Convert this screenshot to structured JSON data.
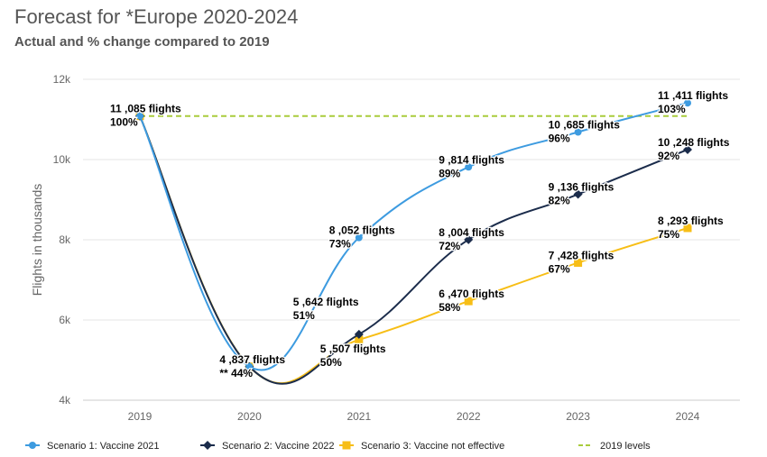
{
  "title": "Forecast for *Europe 2020-2024",
  "subtitle": "Actual and % change compared to 2019",
  "chart_data": {
    "type": "line",
    "title": "Forecast for *Europe 2020-2024",
    "subtitle": "Actual and % change compared to 2019",
    "ylabel": "Flights in thousands",
    "xlabel": "",
    "x": [
      "2019",
      "2020",
      "2021",
      "2022",
      "2023",
      "2024"
    ],
    "ylim": [
      4000,
      12000
    ],
    "yticks": [
      {
        "v": 4000,
        "label": "4k"
      },
      {
        "v": 6000,
        "label": "6k"
      },
      {
        "v": 8000,
        "label": "8k"
      },
      {
        "v": 10000,
        "label": "10k"
      },
      {
        "v": 12000,
        "label": "12k"
      }
    ],
    "grid": true,
    "legend_placement": "bottom",
    "series": [
      {
        "name": "Scenario 1: Vaccine 2021",
        "color": "#3d9be0",
        "marker": "circle",
        "values": [
          11085,
          4837,
          8052,
          9814,
          10685,
          11411
        ],
        "labels": [
          "11 ,085 flights",
          "4 ,837 flights",
          "8 ,052 flights",
          "9 ,814 flights",
          "10 ,685 flights",
          "11 ,411 flights"
        ],
        "pct": [
          "100%",
          "** 44%",
          "73%",
          "89%",
          "96%",
          "103%"
        ]
      },
      {
        "name": "Scenario 2: Vaccine 2022",
        "color": "#1b2c4b",
        "marker": "diamond",
        "values": [
          11085,
          4837,
          5642,
          8004,
          9136,
          10248
        ],
        "labels": [
          null,
          null,
          "5 ,642 flights",
          "8 ,004 flights",
          "9 ,136 flights",
          "10 ,248 flights"
        ],
        "pct": [
          null,
          null,
          "51%",
          "72%",
          "82%",
          "92%"
        ]
      },
      {
        "name": "Scenario 3: Vaccine not effective",
        "color": "#f7be16",
        "marker": "square",
        "values": [
          11085,
          4837,
          5507,
          6470,
          7428,
          8293
        ],
        "labels": [
          null,
          null,
          "5 ,507 flights",
          "6 ,470 flights",
          "7 ,428 flights",
          "8 ,293 flights"
        ],
        "pct": [
          null,
          null,
          "50%",
          "58%",
          "67%",
          "75%"
        ]
      }
    ],
    "reference": {
      "name": "2019 levels",
      "value": 11085,
      "color": "#a9cc3c",
      "style": "dashed"
    }
  }
}
